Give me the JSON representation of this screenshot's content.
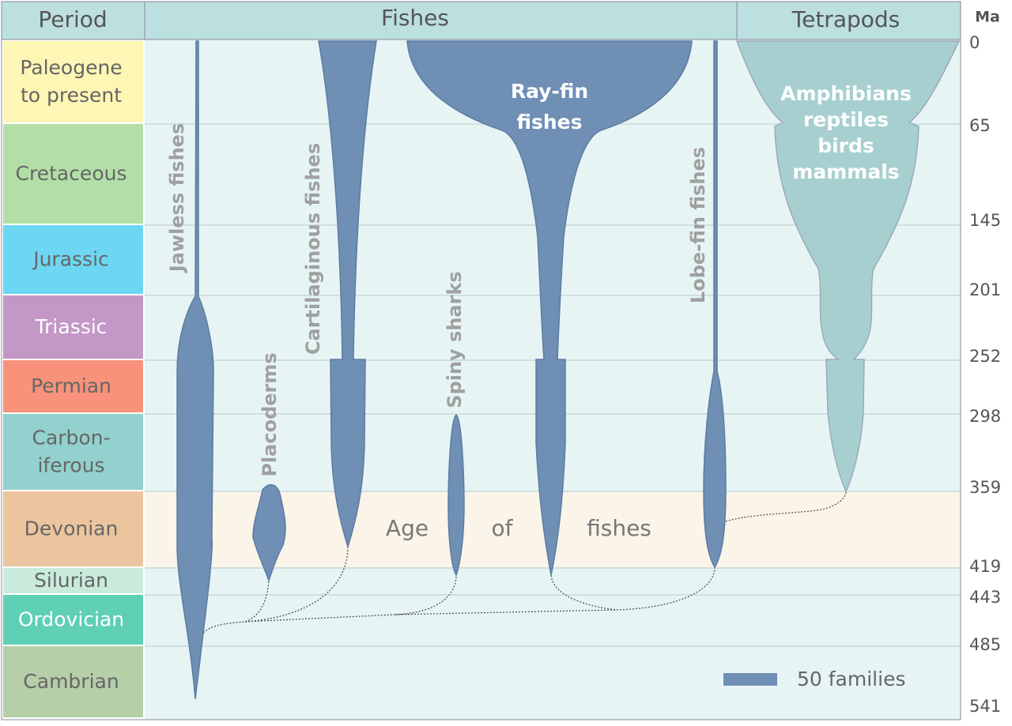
{
  "header": {
    "period": "Period",
    "fishes": "Fishes",
    "tetrapods": "Tetrapods",
    "ma": "Ma"
  },
  "periods": [
    {
      "lines": [
        "Paleogene",
        "to present"
      ]
    },
    {
      "lines": [
        "Cretaceous"
      ]
    },
    {
      "lines": [
        "Jurassic"
      ]
    },
    {
      "lines": [
        "Triassic"
      ]
    },
    {
      "lines": [
        "Permian"
      ]
    },
    {
      "lines": [
        "Carbon-",
        "iferous"
      ]
    },
    {
      "lines": [
        "Devonian"
      ]
    },
    {
      "lines": [
        "Silurian"
      ]
    },
    {
      "lines": [
        "Ordovician"
      ]
    },
    {
      "lines": [
        "Cambrian"
      ]
    }
  ],
  "ma_ticks": [
    "0",
    "65",
    "145",
    "201",
    "252",
    "298",
    "359",
    "419",
    "443",
    "485",
    "541"
  ],
  "groups": {
    "jawless": "Jawless fishes",
    "placoderms": "Placoderms",
    "cartilaginous": "Cartilaginous fishes",
    "spiny": "Spiny sharks",
    "rayfin": [
      "Ray-fin",
      "fishes"
    ],
    "lobefin": "Lobe-fin fishes",
    "tetrapods": [
      "Amphibians",
      "reptiles",
      "birds",
      "mammals"
    ]
  },
  "annotation": [
    "Age",
    "of",
    "fishes"
  ],
  "legend": "50 families"
}
